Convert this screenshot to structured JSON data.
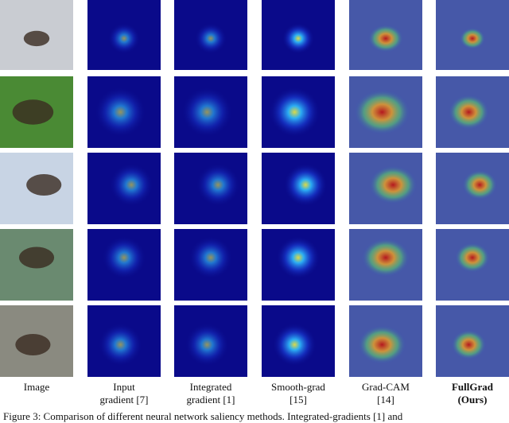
{
  "columns": [
    {
      "lines": [
        "Image"
      ]
    },
    {
      "lines": [
        "Input",
        "gradient [7]"
      ]
    },
    {
      "lines": [
        "Integrated",
        "gradient [1]"
      ]
    },
    {
      "lines": [
        "Smooth-grad",
        "[15]"
      ]
    },
    {
      "lines": [
        "Grad-CAM",
        "[14]"
      ]
    },
    {
      "lines": [
        "FullGrad",
        "(Ours)"
      ],
      "bold": true
    }
  ],
  "caption": "Figure 3: Comparison of different neural network saliency methods. Integrated-gradients [1] and"
}
